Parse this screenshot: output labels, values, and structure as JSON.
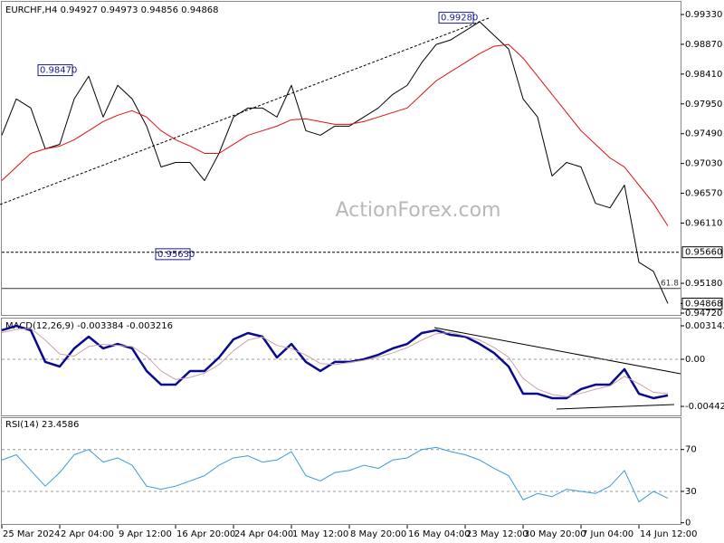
{
  "chart_data": [
    {
      "type": "line",
      "title": "EURCHF,H4 0.94927 0.94973 0.94856 0.94868",
      "watermark": "ActionForex.com",
      "ylim": [
        0.94692,
        0.99526
      ],
      "yticks": [
        {
          "value": 0.9933,
          "label": "0.99330"
        },
        {
          "value": 0.9887,
          "label": "0.98870"
        },
        {
          "value": 0.9841,
          "label": "0.98410"
        },
        {
          "value": 0.9795,
          "label": "0.97950"
        },
        {
          "value": 0.9749,
          "label": "0.97490"
        },
        {
          "value": 0.9703,
          "label": "0.97030"
        },
        {
          "value": 0.9657,
          "label": "0.96570"
        },
        {
          "value": 0.9611,
          "label": "0.96110"
        },
        {
          "value": 0.9518,
          "label": "0.95180"
        },
        {
          "value": 0.9472,
          "label": "0.94720"
        }
      ],
      "series": [
        {
          "color": "#000000",
          "values": [
            0.97466,
            0.98027,
            0.97887,
            0.97256,
            0.97326,
            0.98027,
            0.98377,
            0.97747,
            0.98237,
            0.98027,
            0.97607,
            0.96976,
            0.97046,
            0.97046,
            0.96766,
            0.97186,
            0.97747,
            0.97887,
            0.97887,
            0.97747,
            0.98237,
            0.97536,
            0.97466,
            0.97607,
            0.97607,
            0.97747,
            0.97887,
            0.98097,
            0.98237,
            0.98587,
            0.98868,
            0.98938,
            0.99078,
            0.99218,
            0.99008,
            0.98798,
            0.98027,
            0.97747,
            0.96836,
            0.97046,
            0.96976,
            0.96415,
            0.96345,
            0.96696,
            0.95505,
            0.95365,
            0.94868
          ]
        },
        {
          "color": "#e01010",
          "values": [
            0.96766,
            0.96976,
            0.97186,
            0.97256,
            0.97298,
            0.97396,
            0.97536,
            0.97677,
            0.97775,
            0.97845,
            0.97747,
            0.97536,
            0.97396,
            0.97298,
            0.97186,
            0.97186,
            0.97326,
            0.97466,
            0.97536,
            0.97607,
            0.97705,
            0.97719,
            0.97677,
            0.97635,
            0.97635,
            0.97677,
            0.97747,
            0.97817,
            0.97887,
            0.98097,
            0.98307,
            0.98447,
            0.98587,
            0.98727,
            0.9884,
            0.98868,
            0.98657,
            0.98377,
            0.98097,
            0.97817,
            0.97536,
            0.97326,
            0.97116,
            0.96976,
            0.96696,
            0.96415,
            0.96065
          ]
        }
      ],
      "callouts": [
        {
          "value": 0.9847,
          "label": "0.98470"
        },
        {
          "value": 0.9928,
          "label": "0.99280"
        },
        {
          "value": 0.9563,
          "label": "0.95630"
        }
      ],
      "hline": {
        "value": 0.9566,
        "label": "0.95660"
      },
      "fib": {
        "level_label": "61.8",
        "price": 0.951
      },
      "last_price": {
        "value": 0.94868,
        "label": "0.94868"
      }
    },
    {
      "type": "line",
      "title": "MACD(12,26,9) -0.003384 -0.003216",
      "ylim": [
        -0.00535,
        0.00382
      ],
      "yticks": [
        0.003142,
        {
          "value": 0,
          "label": "0.00"
        },
        -0.00442
      ],
      "dashed_levels": [
        0
      ],
      "series": [
        {
          "color": "#0a0a8c",
          "values": [
            0.00272,
            0.00314,
            0.00272,
            -0.00025,
            -0.00068,
            0.00102,
            0.00212,
            0.00102,
            0.00144,
            0.00102,
            -0.0011,
            -0.00238,
            -0.00238,
            -0.0011,
            -0.0011,
            0.00017,
            0.00187,
            0.00246,
            0.00212,
            0.00017,
            0.00144,
            -0.00025,
            -0.0011,
            -0.00025,
            -0.00025,
            0,
            0.00042,
            0.00102,
            0.00144,
            0.00246,
            0.00272,
            0.00229,
            0.00212,
            0.00144,
            0.00059,
            -0.00068,
            -0.00323,
            -0.00323,
            -0.00365,
            -0.00365,
            -0.0028,
            -0.00238,
            -0.00238,
            -0.00093,
            -0.00323,
            -0.00365,
            -0.003384
          ]
        },
        {
          "color": "#c9a3a8",
          "values": [
            0.0025,
            0.0028,
            0.0029,
            0.0018,
            0.0005,
            0.0003,
            0.0012,
            0.0014,
            0.0013,
            0.0012,
            0.0003,
            -0.0011,
            -0.0019,
            -0.0017,
            -0.0013,
            -0.0005,
            0.0008,
            0.0018,
            0.0021,
            0.0013,
            0.001,
            0.0004,
            -0.0004,
            -0.0005,
            -0.0003,
            -0.0001,
            0.0002,
            0.0006,
            0.0011,
            0.0018,
            0.0024,
            0.0025,
            0.0022,
            0.0018,
            0.0011,
            0.0002,
            -0.0018,
            -0.0028,
            -0.0033,
            -0.0035,
            -0.0032,
            -0.0028,
            -0.0025,
            -0.0016,
            -0.0023,
            -0.0031,
            -0.003216
          ]
        }
      ]
    },
    {
      "type": "line",
      "title": "RSI(14) 23.4586",
      "ylim": [
        -2,
        100
      ],
      "yticks": [
        70,
        30,
        0
      ],
      "dashed_levels": [
        70,
        30
      ],
      "categories": [
        "25 Mar 2024",
        null,
        null,
        null,
        "2 Apr 04:00",
        null,
        null,
        null,
        "9 Apr 12:00",
        null,
        null,
        null,
        "16 Apr 20:00",
        null,
        null,
        null,
        "24 Apr 04:00",
        null,
        null,
        null,
        "1 May 12:00",
        null,
        null,
        null,
        "8 May 20:00",
        null,
        null,
        null,
        "16 May 04:00",
        null,
        null,
        null,
        "23 May 12:00",
        null,
        null,
        null,
        "30 May 20:00",
        null,
        null,
        null,
        "7 Jun 04:00",
        null,
        null,
        null,
        "14 Jun 12:00",
        null,
        null
      ],
      "series": [
        {
          "color": "#3a9ad9",
          "values": [
            60,
            65,
            50,
            35,
            48,
            65,
            70,
            58,
            62,
            55,
            35,
            32,
            35,
            40,
            45,
            55,
            62,
            64,
            58,
            60,
            68,
            45,
            40,
            48,
            50,
            55,
            52,
            60,
            62,
            70,
            72,
            68,
            65,
            60,
            52,
            45,
            22,
            28,
            25,
            32,
            30,
            28,
            35,
            50,
            20,
            30,
            23.4586
          ]
        }
      ]
    }
  ]
}
